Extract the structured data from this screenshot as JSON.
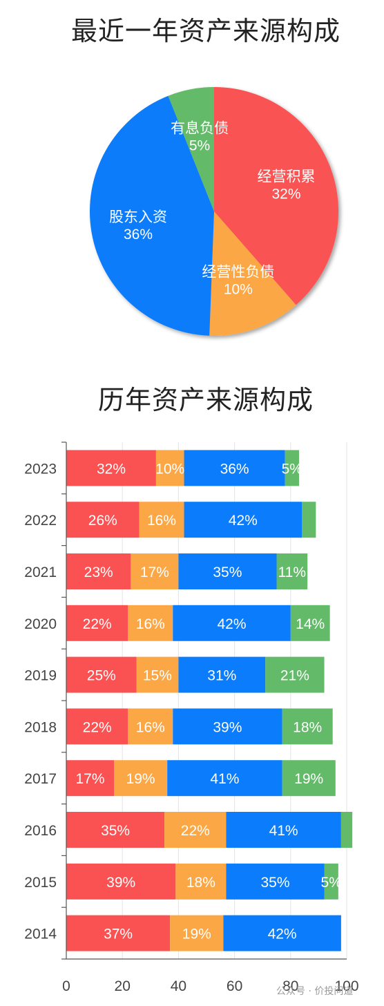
{
  "colors": {
    "operating_accumulation": "#fa5253",
    "operating_liabilities": "#fca745",
    "shareholder_equity": "#0b7cfb",
    "interest_liabilities": "#63ba69"
  },
  "watermark": "公众号 · 价投问道",
  "chart_data": [
    {
      "type": "pie",
      "title": "最近一年资产来源构成",
      "slices": [
        {
          "name": "经营积累",
          "value": 32,
          "label": "32%"
        },
        {
          "name": "经营性负债",
          "value": 10,
          "label": "10%"
        },
        {
          "name": "股东入资",
          "value": 36,
          "label": "36%"
        },
        {
          "name": "有息负债",
          "value": 5,
          "label": "5%"
        }
      ]
    },
    {
      "type": "bar",
      "orientation": "horizontal",
      "stacked": true,
      "title": "历年资产来源构成",
      "categories": [
        "2023",
        "2022",
        "2021",
        "2020",
        "2019",
        "2018",
        "2017",
        "2016",
        "2015",
        "2014"
      ],
      "series": [
        {
          "name": "经营积累",
          "values": [
            32,
            26,
            23,
            22,
            25,
            22,
            17,
            35,
            39,
            37
          ],
          "labels": [
            "32%",
            "26%",
            "23%",
            "22%",
            "25%",
            "22%",
            "17%",
            "35%",
            "39%",
            "37%"
          ]
        },
        {
          "name": "经营性负债",
          "values": [
            10,
            16,
            17,
            16,
            15,
            16,
            19,
            22,
            18,
            19
          ],
          "labels": [
            "10%",
            "16%",
            "17%",
            "16%",
            "15%",
            "16%",
            "19%",
            "22%",
            "18%",
            "19%"
          ]
        },
        {
          "name": "股东入资",
          "values": [
            36,
            42,
            35,
            42,
            31,
            39,
            41,
            41,
            35,
            42
          ],
          "labels": [
            "36%",
            "42%",
            "35%",
            "42%",
            "31%",
            "39%",
            "41%",
            "41%",
            "35%",
            "42%"
          ]
        },
        {
          "name": "有息负债",
          "values": [
            5,
            5,
            11,
            14,
            21,
            18,
            19,
            4,
            5,
            0
          ],
          "labels": [
            "5%",
            "",
            "11%",
            "14%",
            "21%",
            "18%",
            "19%",
            "",
            "5%",
            ""
          ]
        }
      ],
      "xticks": [
        "0",
        "20",
        "40",
        "60",
        "80",
        "100"
      ],
      "xlim": [
        0,
        100
      ],
      "grid": true,
      "legend": "none"
    }
  ]
}
